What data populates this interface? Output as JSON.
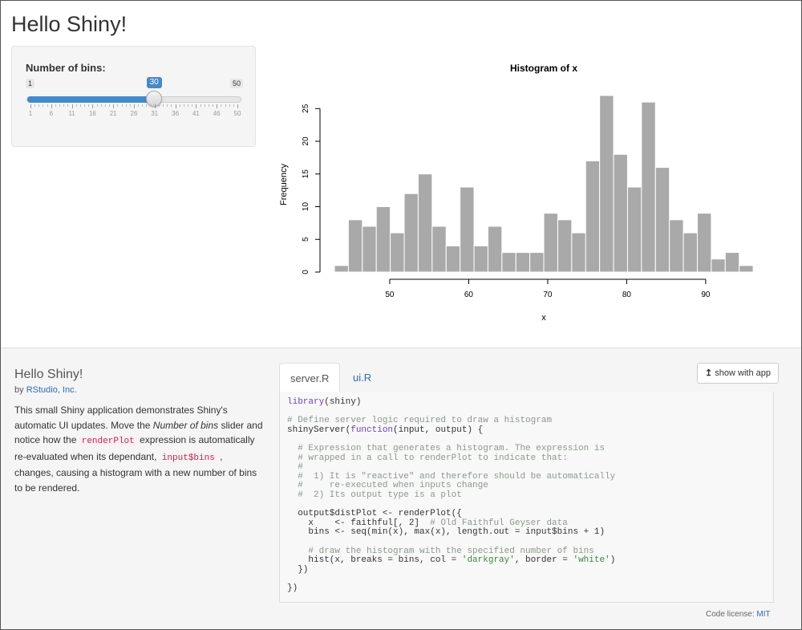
{
  "app": {
    "title": "Hello Shiny!"
  },
  "slider": {
    "label": "Number of bins:",
    "min_label": "1",
    "max_label": "50",
    "value_label": "30",
    "min": 1,
    "max": 50,
    "value": 30,
    "tick_labels": [
      "1",
      "6",
      "11",
      "16",
      "21",
      "26",
      "31",
      "36",
      "41",
      "46",
      "50"
    ],
    "accent_color": "#428bca"
  },
  "chart_data": {
    "type": "bar",
    "title": "Histogram of x",
    "xlabel": "x",
    "ylabel": "Frequency",
    "bar_color": "#a9a9a9",
    "border_color": "#ffffff",
    "x_ticks": [
      "50",
      "60",
      "70",
      "80",
      "90"
    ],
    "y_ticks": [
      "0",
      "5",
      "10",
      "15",
      "20",
      "25"
    ],
    "xlim": [
      43,
      96
    ],
    "ylim": [
      0,
      27
    ],
    "bins_start": 43.0,
    "bin_width": 1.767,
    "values": [
      1,
      8,
      7,
      10,
      6,
      12,
      15,
      7,
      4,
      13,
      4,
      7,
      3,
      3,
      3,
      9,
      8,
      6,
      17,
      27,
      18,
      13,
      26,
      16,
      8,
      6,
      9,
      2,
      3,
      1
    ]
  },
  "meta": {
    "title": "Hello Shiny!",
    "by_prefix": "by",
    "author": "RStudio, Inc.",
    "desc_1": "This small Shiny application demonstrates Shiny's automatic UI updates. Move the",
    "desc_em": "Number of bins",
    "desc_2": "slider and notice how the",
    "desc_code1": "renderPlot",
    "desc_3": "expression is automatically re-evaluated when its dependant,",
    "desc_code2": "input$bins",
    "desc_4": ", changes, causing a histogram with a new number of bins to be rendered."
  },
  "code": {
    "tabs": [
      "server.R",
      "ui.R"
    ],
    "show_with_app": "show with app",
    "license_prefix": "Code license:",
    "license_name": "MIT",
    "lines": [
      "library(shiny)",
      "",
      "# Define server logic required to draw a histogram",
      "shinyServer(function(input, output) {",
      "",
      "  # Expression that generates a histogram. The expression is",
      "  # wrapped in a call to renderPlot to indicate that:",
      "  #",
      "  #  1) It is \"reactive\" and therefore should be automatically",
      "  #     re-executed when inputs change",
      "  #  2) Its output type is a plot",
      "",
      "  output$distPlot <- renderPlot({",
      "    x    <- faithful[, 2]  # Old Faithful Geyser data",
      "    bins <- seq(min(x), max(x), length.out = input$bins + 1)",
      "",
      "    # draw the histogram with the specified number of bins",
      "    hist(x, breaks = bins, col = 'darkgray', border = 'white')",
      "  })",
      "",
      "})"
    ]
  }
}
